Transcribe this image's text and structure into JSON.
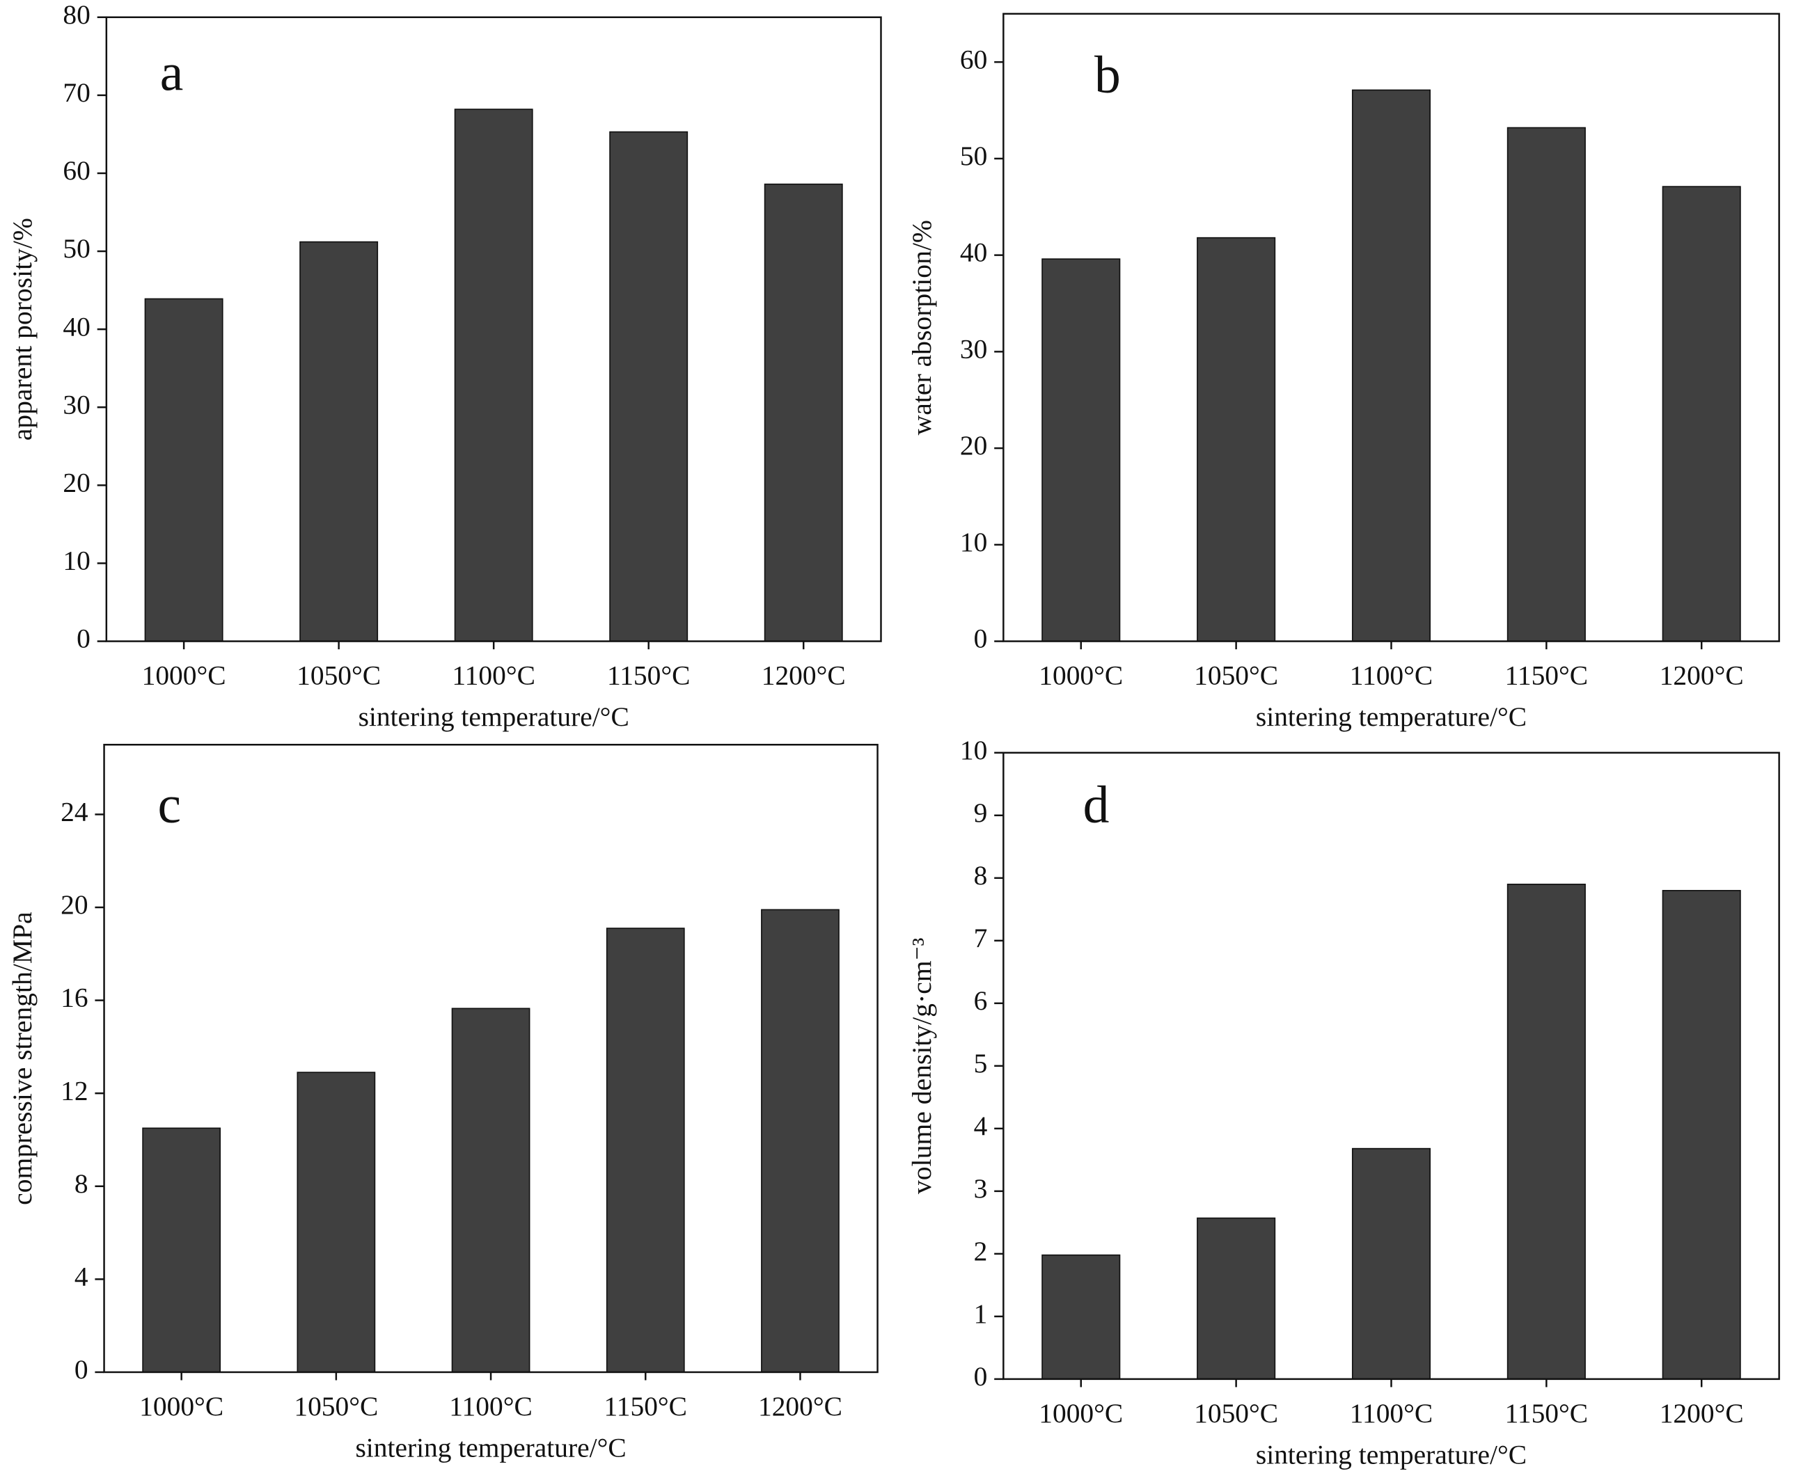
{
  "chart_data": [
    {
      "type": "bar",
      "panel_label": "a",
      "xlabel": "sintering temperature/°C",
      "ylabel": "apparent porosity/%",
      "categories": [
        "1000°C",
        "1050°C",
        "1100°C",
        "1150°C",
        "1200°C"
      ],
      "values": [
        43.9,
        51.2,
        68.2,
        65.3,
        58.6
      ],
      "color": "#404040",
      "ylim": [
        0,
        80
      ],
      "yticks": [
        0,
        10,
        20,
        30,
        40,
        50,
        60,
        70,
        80
      ]
    },
    {
      "type": "bar",
      "panel_label": "b",
      "xlabel": "sintering temperature/°C",
      "ylabel": "water absorption/%",
      "categories": [
        "1000°C",
        "1050°C",
        "1100°C",
        "1150°C",
        "1200°C"
      ],
      "values": [
        39.6,
        41.8,
        57.1,
        53.2,
        47.1
      ],
      "color": "#404040",
      "ylim": [
        0,
        65
      ],
      "yticks": [
        0,
        10,
        20,
        30,
        40,
        50,
        60
      ]
    },
    {
      "type": "bar",
      "panel_label": "c",
      "xlabel": "sintering temperature/°C",
      "ylabel": "compressive strength/MPa",
      "categories": [
        "1000°C",
        "1050°C",
        "1100°C",
        "1150°C",
        "1200°C"
      ],
      "values": [
        10.5,
        12.9,
        15.65,
        19.1,
        19.9
      ],
      "color": "#404040",
      "ylim": [
        0,
        27
      ],
      "yticks": [
        0,
        4,
        8,
        12,
        16,
        20,
        24
      ]
    },
    {
      "type": "bar",
      "panel_label": "d",
      "xlabel": "sintering temperature/°C",
      "ylabel": "volume density/g·cm⁻³",
      "categories": [
        "1000°C",
        "1050°C",
        "1100°C",
        "1150°C",
        "1200°C"
      ],
      "values": [
        1.98,
        2.57,
        3.68,
        7.9,
        7.8
      ],
      "color": "#404040",
      "ylim": [
        0,
        10
      ],
      "yticks": [
        0,
        1,
        2,
        3,
        4,
        5,
        6,
        7,
        8,
        9,
        10
      ]
    }
  ]
}
